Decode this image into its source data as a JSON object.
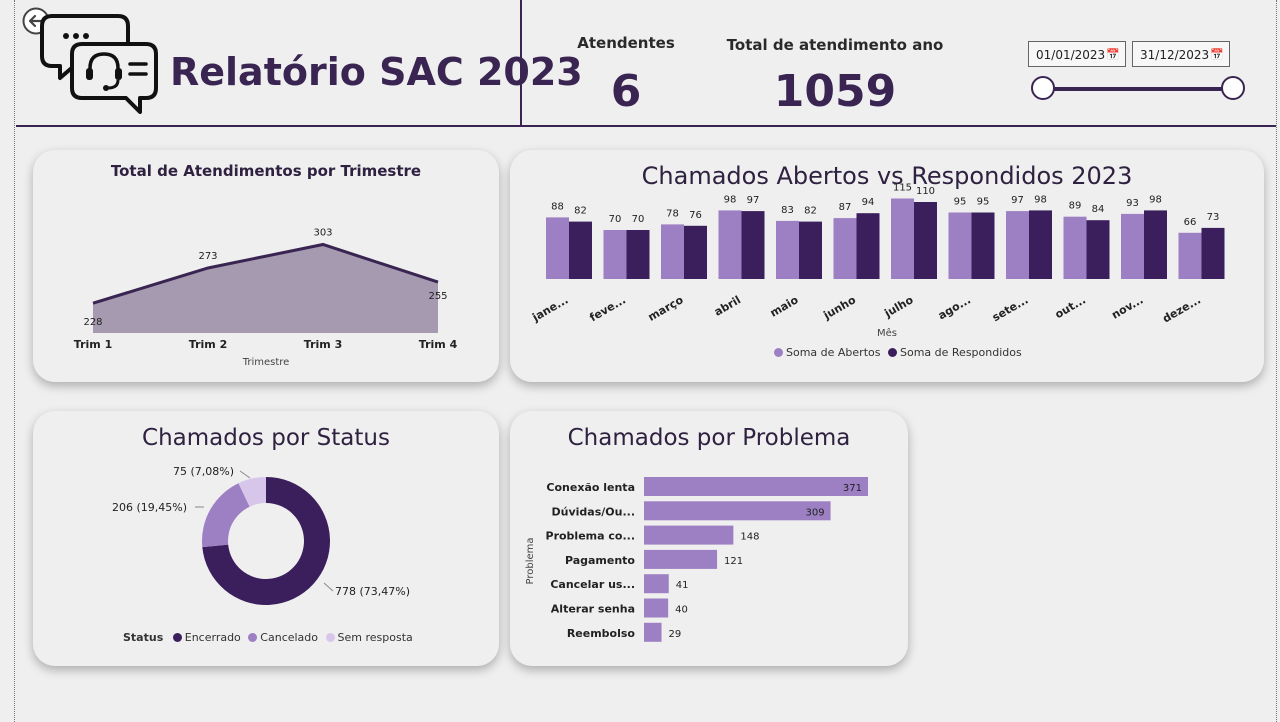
{
  "header": {
    "title": "Relatório SAC 2023",
    "kpis": [
      {
        "label": "Atendentes",
        "value": "6"
      },
      {
        "label": "Total de atendimento ano",
        "value": "1059"
      }
    ],
    "date_start": "01/01/2023",
    "date_end": "31/12/2023",
    "slider_range": [
      0,
      1
    ]
  },
  "colors": {
    "dark": "#3a1f5c",
    "light": "#9d7fc4",
    "pale": "#d7c5ea",
    "area": "#a59ab0",
    "accent": "#3a2552"
  },
  "icons": [
    "back-arrow-icon",
    "chat-support-icon",
    "calendar-icon"
  ],
  "chart_data": [
    {
      "type": "area",
      "title": "Total de Atendimentos por Trimestre",
      "xlabel": "Trimestre",
      "categories": [
        "Trim 1",
        "Trim 2",
        "Trim 3",
        "Trim 4"
      ],
      "values": [
        228,
        273,
        303,
        255
      ],
      "ylim": [
        190,
        310
      ]
    },
    {
      "type": "bar",
      "title": "Chamados Abertos vs Respondidos 2023",
      "xlabel": "Mês",
      "categories": [
        "jane...",
        "feve...",
        "março",
        "abril",
        "maio",
        "junho",
        "julho",
        "ago...",
        "sete...",
        "out...",
        "nov...",
        "deze..."
      ],
      "series": [
        {
          "name": "Soma de Abertos",
          "values": [
            88,
            70,
            78,
            98,
            83,
            87,
            115,
            95,
            97,
            89,
            93,
            66
          ]
        },
        {
          "name": "Soma de Respondidos",
          "values": [
            82,
            70,
            76,
            97,
            82,
            94,
            110,
            95,
            98,
            84,
            98,
            73
          ]
        }
      ],
      "ylim": [
        0,
        120
      ]
    },
    {
      "type": "pie",
      "title": "Chamados por Status",
      "legend_title": "Status",
      "slices": [
        {
          "name": "Encerrado",
          "value": 778,
          "label": "778 (73,47%)"
        },
        {
          "name": "Cancelado",
          "value": 206,
          "label": "206 (19,45%)"
        },
        {
          "name": "Sem resposta",
          "value": 75,
          "label": "75 (7,08%)"
        }
      ]
    },
    {
      "type": "bar",
      "orientation": "horizontal",
      "title": "Chamados por Problema",
      "ylabel": "Problema",
      "categories": [
        "Conexão lenta",
        "Dúvidas/Ou...",
        "Problema co...",
        "Pagamento",
        "Cancelar us...",
        "Alterar senha",
        "Reembolso"
      ],
      "values": [
        371,
        309,
        148,
        121,
        41,
        40,
        29
      ],
      "xlim": [
        0,
        380
      ]
    }
  ]
}
